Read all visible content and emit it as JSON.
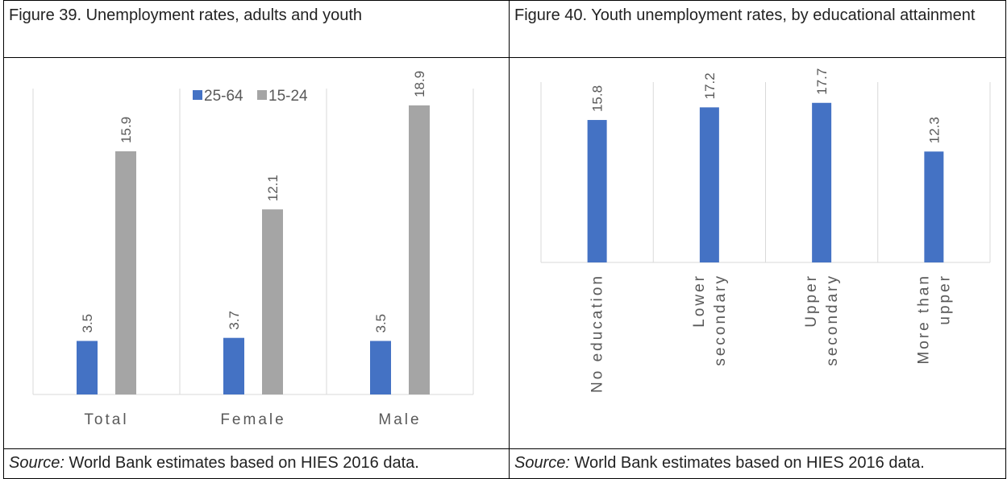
{
  "figures": [
    {
      "title": "Figure 39. Unemployment rates, adults and youth",
      "source_label": "Source:",
      "source_text": " World Bank estimates based on HIES 2016 data."
    },
    {
      "title": "Figure 40. Youth unemployment rates, by educational attainment",
      "source_label": "Source:",
      "source_text": " World Bank estimates based on HIES 2016 data."
    }
  ],
  "colors": {
    "blue": "#4472C4",
    "gray": "#A5A5A5",
    "axis": "#D9D9D9",
    "label": "#595959"
  },
  "chart_data": [
    {
      "type": "bar",
      "categories": [
        "Total",
        "Female",
        "Male"
      ],
      "series": [
        {
          "name": "25-64",
          "values": [
            3.5,
            3.7,
            3.5
          ],
          "color": "#4472C4"
        },
        {
          "name": "15-24",
          "values": [
            15.9,
            12.1,
            18.9
          ],
          "color": "#A5A5A5"
        }
      ],
      "ylim": [
        0,
        20
      ],
      "legend": "top-center",
      "grid": false
    },
    {
      "type": "bar",
      "categories": [
        "No education",
        "Lower secondary",
        "Upper secondary",
        "More than upper"
      ],
      "category_lines": [
        [
          "No education"
        ],
        [
          "Lower",
          "secondary"
        ],
        [
          "Upper",
          "secondary"
        ],
        [
          "More than",
          "upper"
        ]
      ],
      "series": [
        {
          "values": [
            15.8,
            17.2,
            17.7,
            12.3
          ],
          "color": "#4472C4"
        }
      ],
      "ylim": [
        0,
        20
      ],
      "grid": false
    }
  ]
}
